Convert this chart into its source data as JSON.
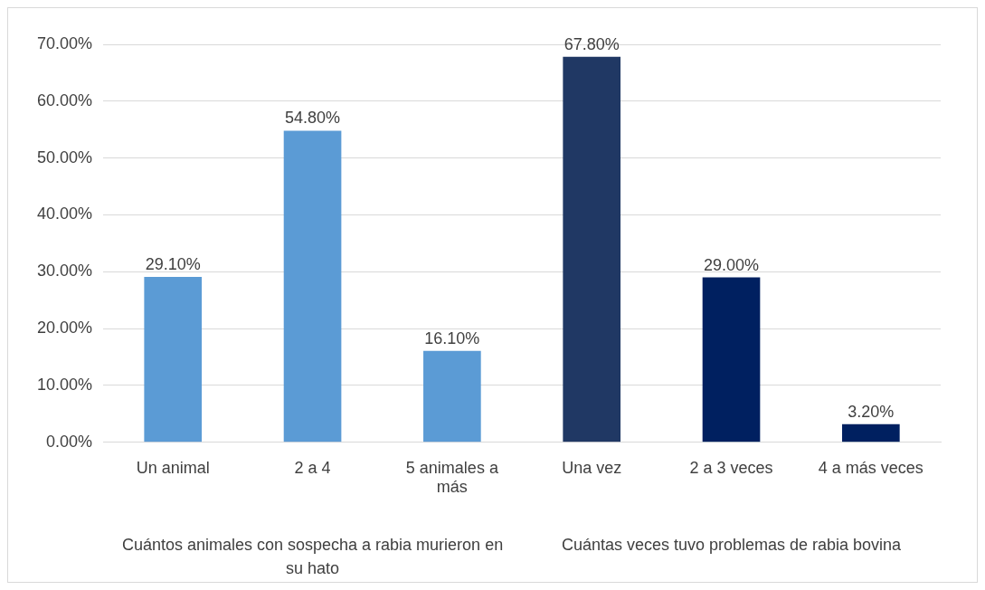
{
  "chart_data": {
    "type": "bar",
    "categories": [
      "Un animal",
      "2 a 4",
      "5 animales a más",
      "Una vez",
      "2 a 3 veces",
      "4 a más veces"
    ],
    "values": [
      29.1,
      54.8,
      16.1,
      67.8,
      29.0,
      3.2
    ],
    "colors": [
      "#5b9bd5",
      "#5b9bd5",
      "#5b9bd5",
      "#203864",
      "#002060",
      "#002060"
    ],
    "value_labels": [
      "29.10%",
      "54.80%",
      "16.10%",
      "67.80%",
      "29.00%",
      "3.20%"
    ],
    "ylim": [
      0,
      70
    ],
    "yticks": [
      {
        "value": 0,
        "label": "0.00%"
      },
      {
        "value": 10,
        "label": "10.00%"
      },
      {
        "value": 20,
        "label": "20.00%"
      },
      {
        "value": 30,
        "label": "30.00%"
      },
      {
        "value": 40,
        "label": "40.00%"
      },
      {
        "value": 50,
        "label": "50.00%"
      },
      {
        "value": 60,
        "label": "60.00%"
      },
      {
        "value": 70,
        "label": "70.00%"
      }
    ],
    "grid": "y",
    "annotations": [
      "Cuántos animales con sospecha a rabia murieron en su hato",
      "Cuántas veces tuvo problemas de rabia bovina"
    ]
  }
}
